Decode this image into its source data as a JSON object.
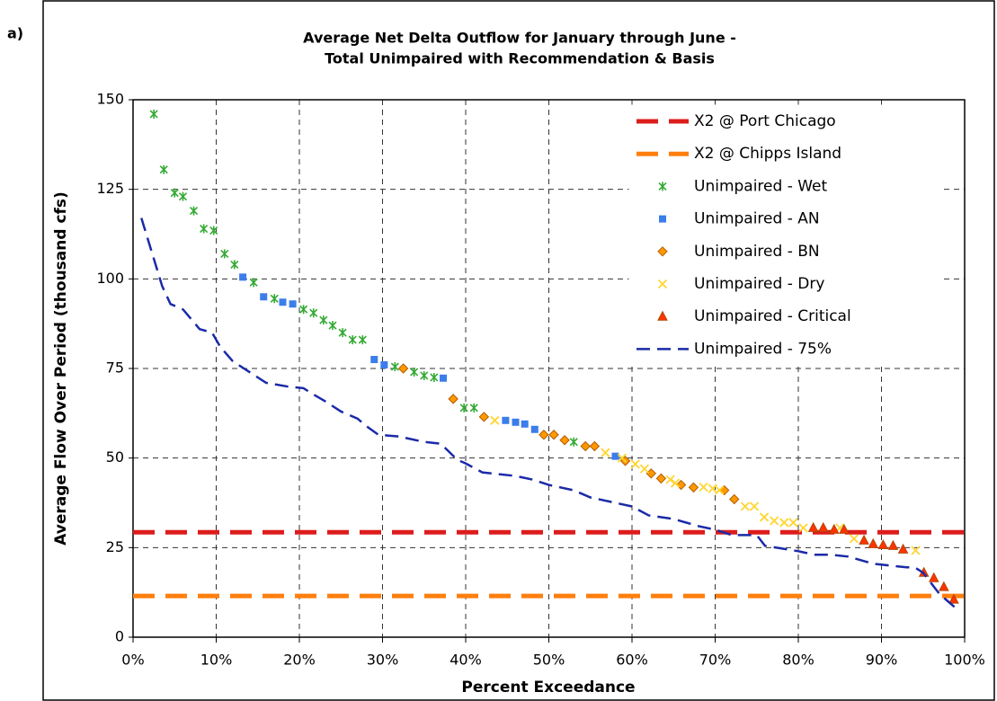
{
  "chart_data": {
    "type": "scatter",
    "panel_label": "a)",
    "title": [
      "Average Net Delta Outflow for January through June -",
      "Total Unimpaired with Recommendation & Basis"
    ],
    "xlabel": "Percent Exceedance",
    "ylabel": "Average Flow Over Period (thousand cfs)",
    "xlim": [
      0,
      100
    ],
    "ylim": [
      0,
      150
    ],
    "xticks": [
      {
        "value": 0,
        "label": "0%"
      },
      {
        "value": 10,
        "label": "10%"
      },
      {
        "value": 20,
        "label": "20%"
      },
      {
        "value": 30,
        "label": "30%"
      },
      {
        "value": 40,
        "label": "40%"
      },
      {
        "value": 50,
        "label": "50%"
      },
      {
        "value": 60,
        "label": "60%"
      },
      {
        "value": 70,
        "label": "70%"
      },
      {
        "value": 80,
        "label": "80%"
      },
      {
        "value": 90,
        "label": "90%"
      },
      {
        "value": 100,
        "label": "100%"
      }
    ],
    "yticks": [
      0,
      25,
      50,
      75,
      100,
      125,
      150
    ],
    "grid": true,
    "legend": "upper right",
    "series": [
      {
        "name": "X2 @ Port Chicago",
        "color": "#dd1c1c",
        "kind": "line",
        "style": "bigdash",
        "x": [
          0,
          100
        ],
        "values": [
          29.3,
          29.3
        ]
      },
      {
        "name": "X2 @ Chipps Island",
        "color": "#ff7f0e",
        "kind": "line",
        "style": "bigdash",
        "x": [
          0,
          100
        ],
        "values": [
          11.5,
          11.5
        ]
      },
      {
        "name": "Unimpaired - Wet",
        "color": "#33aa33",
        "kind": "scatter",
        "marker": "star",
        "x": [
          2.5,
          3.7,
          5,
          6,
          7.3,
          8.5,
          9.7,
          11,
          12.2,
          14.5,
          17,
          20.5,
          21.7,
          22.9,
          24,
          25.2,
          26.4,
          27.6,
          31.5,
          33.8,
          35,
          36.2,
          39.8,
          41,
          53
        ],
        "values": [
          146,
          130.5,
          124,
          123,
          119,
          114,
          113.5,
          107,
          104,
          99,
          94.5,
          91.5,
          90.5,
          88.5,
          87,
          85,
          83,
          83,
          75.5,
          74,
          73,
          72.5,
          64,
          64,
          54.5
        ]
      },
      {
        "name": "Unimpaired - AN",
        "color": "#3b7dea",
        "kind": "scatter",
        "marker": "square",
        "x": [
          13.2,
          15.7,
          18,
          19.2,
          29,
          30.2,
          37.3,
          44.8,
          46,
          47.1,
          48.3,
          58
        ],
        "values": [
          100.5,
          95,
          93.5,
          93,
          77.5,
          76,
          72.3,
          60.5,
          60,
          59.5,
          58,
          50.5
        ]
      },
      {
        "name": "Unimpaired - BN",
        "color": "#ff9900",
        "kind": "scatter",
        "marker": "diamond",
        "x": [
          32.5,
          38.5,
          42.2,
          49.4,
          50.6,
          51.9,
          54.4,
          55.5,
          59.2,
          62.3,
          63.5,
          65.9,
          67.4,
          71.1,
          72.3
        ],
        "values": [
          75,
          66.5,
          61.5,
          56.5,
          56.5,
          55,
          53.3,
          53.3,
          49.2,
          45.7,
          44.3,
          42.5,
          41.8,
          41,
          38.5
        ]
      },
      {
        "name": "Unimpaired - Dry",
        "color": "#ffd633",
        "kind": "scatter",
        "marker": "cross",
        "x": [
          43.5,
          56.8,
          58.8,
          60.4,
          61.5,
          64.6,
          65.2,
          68.6,
          69.7,
          70.5,
          73.6,
          74.7,
          75.9,
          77.1,
          78.3,
          79.4,
          80.6,
          85,
          86.7,
          94.1
        ],
        "values": [
          60.5,
          51.5,
          50,
          48.3,
          47,
          44,
          43,
          41.9,
          41.5,
          41,
          36.5,
          36.5,
          33.5,
          32.5,
          32,
          32,
          30.5,
          30.5,
          27.5,
          24.2
        ]
      },
      {
        "name": "Unimpaired - Critical",
        "color": "#ff3300",
        "kind": "scatter",
        "marker": "triangle",
        "x": [
          81.8,
          83,
          84.3,
          85.5,
          87.9,
          89,
          90.2,
          91.4,
          92.6,
          95.1,
          96.3,
          97.5,
          98.7
        ],
        "values": [
          30.5,
          30.5,
          30,
          30,
          27,
          26,
          25.7,
          25.5,
          24.5,
          18,
          16.5,
          14,
          10.5
        ]
      },
      {
        "name": "Unimpaired - 75%",
        "color": "#1a2aa8",
        "kind": "line",
        "style": "dash",
        "x": [
          1,
          3.5,
          4.5,
          6,
          8,
          9.5,
          10.5,
          12,
          14,
          16,
          18.5,
          20.5,
          21.5,
          23,
          25,
          27,
          28,
          29.5,
          32,
          35,
          37,
          39,
          40,
          42,
          46,
          48,
          50,
          53,
          55,
          58,
          60,
          62,
          65,
          68,
          70,
          72,
          75,
          76,
          80,
          82,
          84,
          86,
          89,
          93,
          94,
          95,
          97,
          99
        ],
        "values": [
          117,
          98,
          93,
          91.5,
          86,
          85,
          81,
          77,
          74,
          71,
          70,
          69.5,
          68,
          66,
          63,
          61,
          59,
          56.5,
          56,
          54.5,
          54,
          49.5,
          48.5,
          46,
          45,
          44,
          42.5,
          41,
          39,
          37.5,
          36.5,
          34,
          33,
          31,
          30,
          28.5,
          28.5,
          25.5,
          24,
          23,
          23,
          22.5,
          20.5,
          19.5,
          19.5,
          18,
          12,
          8
        ]
      }
    ]
  }
}
